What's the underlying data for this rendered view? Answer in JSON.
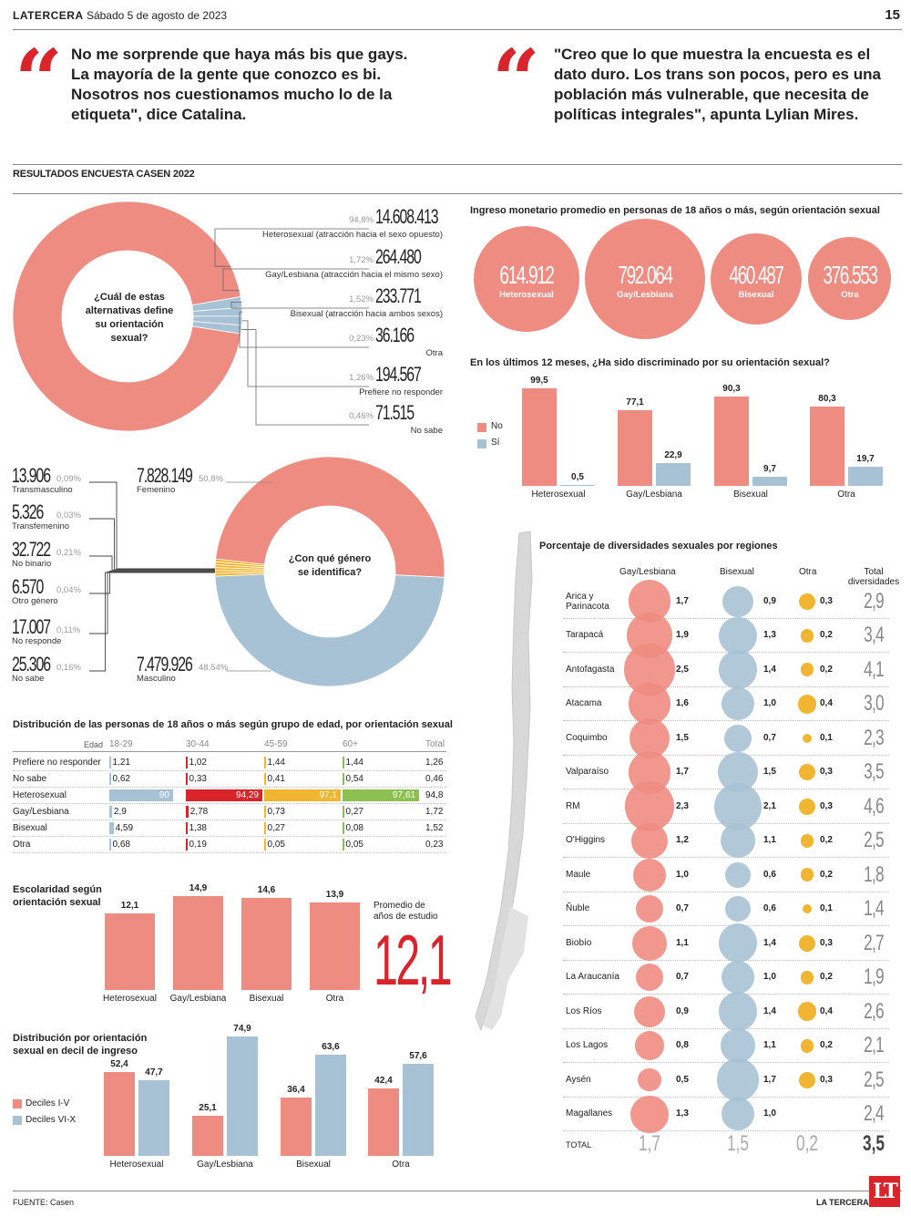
{
  "header": {
    "brand": "LATERCERA",
    "date": "Sábado 5 de agosto de 2023",
    "page_number": "15"
  },
  "quotes": [
    {
      "text": "No me sorprende que haya más bis que gays. La mayoría de la gente que conozco es bi. Nosotros nos cuestionamos mucho lo de la etiqueta\", dice Catalina."
    },
    {
      "text": "\"Creo que lo que muestra la encuesta es el dato duro. Los trans son pocos, pero es una población más vulnerable, que necesita de políticas integrales\", apunta Lylian Mires."
    }
  ],
  "section_title": "RESULTADOS ENCUESTA CASEN 2022",
  "colors": {
    "salmon": "#ef8c82",
    "blue": "#a7c2d4",
    "red": "#d9242b",
    "yellow": "#f2b531",
    "green": "#8cc152",
    "lightred": "#f4a69e"
  },
  "chart_data": [
    {
      "type": "pie",
      "id": "orientation",
      "title": "¿Cuál de estas alternativas define su orientación sexual?",
      "slices": [
        {
          "label": "Heterosexual (atracción hacia el sexo opuesto)",
          "value": "14.608.413",
          "pct": "94,8%",
          "p": 94.8,
          "color": "#ef8c82"
        },
        {
          "label": "Gay/Lesbiana (atracción hacia el mismo sexo)",
          "value": "264.480",
          "pct": "1,72%",
          "p": 1.72,
          "color": "#a7c2d4"
        },
        {
          "label": "Bisexual (atracción hacia ambos sexos)",
          "value": "233.771",
          "pct": "1,52%",
          "p": 1.52,
          "color": "#a7c2d4"
        },
        {
          "label": "Otra",
          "value": "36.166",
          "pct": "0,23%",
          "p": 0.23,
          "color": "#a7c2d4"
        },
        {
          "label": "Prefiere no responder",
          "value": "194.567",
          "pct": "1,26%",
          "p": 1.26,
          "color": "#a7c2d4"
        },
        {
          "label": "No sabe",
          "value": "71.515",
          "pct": "0,46%",
          "p": 0.46,
          "color": "#a7c2d4"
        }
      ]
    },
    {
      "type": "pie",
      "id": "gender",
      "title": "¿Con qué género se identifica?",
      "slices": [
        {
          "label": "Femenino",
          "value": "7.828.149",
          "pct": "50,8%",
          "p": 50.8,
          "color": "#ef8c82"
        },
        {
          "label": "Transmasculino",
          "value": "13.906",
          "pct": "0,09%",
          "p": 0.09,
          "color": "#f2b531"
        },
        {
          "label": "Transfemenino",
          "value": "5.326",
          "pct": "0,03%",
          "p": 0.03,
          "color": "#f2b531"
        },
        {
          "label": "No binario",
          "value": "32.722",
          "pct": "0,21%",
          "p": 0.21,
          "color": "#f2b531"
        },
        {
          "label": "Otro género",
          "value": "6.570",
          "pct": "0,04%",
          "p": 0.04,
          "color": "#f2b531"
        },
        {
          "label": "No responde",
          "value": "17.007",
          "pct": "0,11%",
          "p": 0.11,
          "color": "#f2b531"
        },
        {
          "label": "No sabe",
          "value": "25.306",
          "pct": "0,16%",
          "p": 0.16,
          "color": "#f2b531"
        },
        {
          "label": "Masculino",
          "value": "7.479.926",
          "pct": "48,54%",
          "p": 48.54,
          "color": "#a7c2d4"
        }
      ]
    },
    {
      "type": "bubble",
      "id": "income",
      "title": "Ingreso monetario promedio en personas de 18 años o más, según orientación sexual",
      "items": [
        {
          "label": "Heterosexual",
          "value": 614912,
          "display": "614.912"
        },
        {
          "label": "Gay/Lesbiana",
          "value": 792064,
          "display": "792.064"
        },
        {
          "label": "Bisexual",
          "value": 460487,
          "display": "460.487"
        },
        {
          "label": "Otra",
          "value": 376553,
          "display": "376.553"
        }
      ]
    },
    {
      "type": "bar",
      "id": "discrimination",
      "title": "En los últimos 12 meses, ¿Ha sido discriminado por su orientación sexual?",
      "categories": [
        "Heterosexual",
        "Gay/Lesbiana",
        "Bisexual",
        "Otra"
      ],
      "series": [
        {
          "name": "No",
          "values": [
            99.5,
            77.1,
            90.3,
            80.3
          ],
          "labels": [
            "99,5",
            "77,1",
            "90,3",
            "80,3"
          ],
          "color": "#ef8c82"
        },
        {
          "name": "Sí",
          "values": [
            0.5,
            22.9,
            9.7,
            19.7
          ],
          "labels": [
            "0,5",
            "22,9",
            "9,7",
            "19,7"
          ],
          "color": "#a7c2d4"
        }
      ],
      "ylim": [
        0,
        100
      ]
    },
    {
      "type": "table",
      "id": "age",
      "title": "Distribución de las personas de 18 años o más según grupo de edad, por orientación sexual",
      "header_label": "Edad",
      "columns": [
        "18-29",
        "30-44",
        "45-59",
        "60+",
        "Total"
      ],
      "rows": [
        {
          "label": "Prefiere no responder",
          "values": [
            "1,21",
            "1,02",
            "1,44",
            "1,44",
            "1,26"
          ]
        },
        {
          "label": "No sabe",
          "values": [
            "0,62",
            "0,33",
            "0,41",
            "0,54",
            "0,46"
          ]
        },
        {
          "label": "Heterosexual",
          "values": [
            "90",
            "94,29",
            "97,1",
            "97,61",
            "94,8"
          ]
        },
        {
          "label": "Gay/Lesbiana",
          "values": [
            "2,9",
            "2,78",
            "0,73",
            "0,27",
            "1,72"
          ]
        },
        {
          "label": "Bisexual",
          "values": [
            "4,59",
            "1,38",
            "0,27",
            "0,08",
            "1,52"
          ]
        },
        {
          "label": "Otra",
          "values": [
            "0,68",
            "0,19",
            "0,05",
            "0,05",
            "0,23"
          ]
        }
      ],
      "column_colors": [
        "#a7c2d4",
        "#d9242b",
        "#f2b531",
        "#8cc152"
      ]
    },
    {
      "type": "bar",
      "id": "schooling",
      "title": "Escolaridad según orientación sexual",
      "categories": [
        "Heterosexual",
        "Gay/Lesbiana",
        "Bisexual",
        "Otra"
      ],
      "values": [
        12.1,
        14.9,
        14.6,
        13.9
      ],
      "labels": [
        "12,1",
        "14,9",
        "14,6",
        "13,9"
      ],
      "average_label": "Promedio de años de estudio",
      "average_value": "12,1",
      "ylim": [
        0,
        15
      ]
    },
    {
      "type": "bar",
      "id": "decile",
      "title": "Distribución por orientación sexual en decil de ingreso",
      "categories": [
        "Heterosexual",
        "Gay/Lesbiana",
        "Bisexual",
        "Otra"
      ],
      "series": [
        {
          "name": "Deciles I-V",
          "values": [
            52.4,
            25.1,
            36.4,
            42.4
          ],
          "labels": [
            "52,4",
            "25,1",
            "36,4",
            "42,4"
          ],
          "color": "#ef8c82"
        },
        {
          "name": "Deciles VI-X",
          "values": [
            47.7,
            74.9,
            63.6,
            57.6
          ],
          "labels": [
            "47,7",
            "74,9",
            "63,6",
            "57,6"
          ],
          "color": "#a7c2d4"
        }
      ],
      "ylim": [
        0,
        80
      ]
    },
    {
      "type": "bubble-table",
      "id": "regions",
      "title": "Porcentaje de diversidades sexuales por regiones",
      "columns": [
        "Gay/Lesbiana",
        "Bisexual",
        "Otra",
        "Total diversidades"
      ],
      "rows": [
        {
          "region": "Arica y Parinacota",
          "gay": 1.7,
          "bi": 0.9,
          "otra": 0.3,
          "total": "2,9"
        },
        {
          "region": "Tarapacá",
          "gay": 1.9,
          "bi": 1.3,
          "otra": 0.2,
          "total": "3,4"
        },
        {
          "region": "Antofagasta",
          "gay": 2.5,
          "bi": 1.4,
          "otra": 0.2,
          "total": "4,1"
        },
        {
          "region": "Atacama",
          "gay": 1.6,
          "bi": 1.0,
          "otra": 0.4,
          "total": "3,0"
        },
        {
          "region": "Coquimbo",
          "gay": 1.5,
          "bi": 0.7,
          "otra": 0.1,
          "total": "2,3"
        },
        {
          "region": "Valparaíso",
          "gay": 1.7,
          "bi": 1.5,
          "otra": 0.3,
          "total": "3,5"
        },
        {
          "region": "RM",
          "gay": 2.3,
          "bi": 2.1,
          "otra": 0.3,
          "total": "4,6"
        },
        {
          "region": "O'Higgins",
          "gay": 1.2,
          "bi": 1.1,
          "otra": 0.2,
          "total": "2,5"
        },
        {
          "region": "Maule",
          "gay": 1.0,
          "bi": 0.6,
          "otra": 0.2,
          "total": "1,8"
        },
        {
          "region": "Ñuble",
          "gay": 0.7,
          "bi": 0.6,
          "otra": 0.1,
          "total": "1,4"
        },
        {
          "region": "Biobío",
          "gay": 1.1,
          "bi": 1.4,
          "otra": 0.3,
          "total": "2,7"
        },
        {
          "region": "La Araucanía",
          "gay": 0.7,
          "bi": 1.0,
          "otra": 0.2,
          "total": "1,9"
        },
        {
          "region": "Los Ríos",
          "gay": 0.9,
          "bi": 1.4,
          "otra": 0.4,
          "total": "2,6"
        },
        {
          "region": "Los Lagos",
          "gay": 0.8,
          "bi": 1.1,
          "otra": 0.2,
          "total": "2,1"
        },
        {
          "region": "Aysén",
          "gay": 0.5,
          "bi": 1.7,
          "otra": 0.3,
          "total": "2,5"
        },
        {
          "region": "Magallanes",
          "gay": 1.3,
          "bi": 1.0,
          "otra": null,
          "total": "2,4"
        }
      ],
      "total_row": {
        "label": "TOTAL",
        "gay": "1,7",
        "bi": "1,5",
        "otra": "0,2",
        "total": "3,5"
      }
    }
  ],
  "footer": {
    "source": "FUENTE: Casen",
    "brand": "LA TERCERA",
    "logo": "LT"
  }
}
